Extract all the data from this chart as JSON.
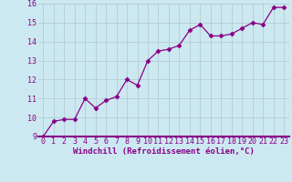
{
  "x": [
    0,
    1,
    2,
    3,
    4,
    5,
    6,
    7,
    8,
    9,
    10,
    11,
    12,
    13,
    14,
    15,
    16,
    17,
    18,
    19,
    20,
    21,
    22,
    23
  ],
  "y": [
    9.0,
    9.8,
    9.9,
    9.9,
    11.0,
    10.5,
    10.9,
    11.1,
    12.0,
    11.7,
    13.0,
    13.5,
    13.6,
    13.8,
    14.6,
    14.9,
    14.3,
    14.3,
    14.4,
    14.7,
    15.0,
    14.9,
    15.8,
    15.8
  ],
  "line_color": "#880088",
  "marker": "D",
  "marker_size": 2.5,
  "bg_color": "#cce8f0",
  "grid_color": "#b0c8d0",
  "xlabel": "Windchill (Refroidissement éolien,°C)",
  "xlabel_color": "#880088",
  "xlabel_fontsize": 6.5,
  "tick_color": "#880088",
  "tick_fontsize": 6.0,
  "ylim": [
    9,
    16
  ],
  "xlim": [
    -0.5,
    23.5
  ],
  "yticks": [
    9,
    10,
    11,
    12,
    13,
    14,
    15,
    16
  ],
  "xticks": [
    0,
    1,
    2,
    3,
    4,
    5,
    6,
    7,
    8,
    9,
    10,
    11,
    12,
    13,
    14,
    15,
    16,
    17,
    18,
    19,
    20,
    21,
    22,
    23
  ],
  "border_color": "#880088"
}
